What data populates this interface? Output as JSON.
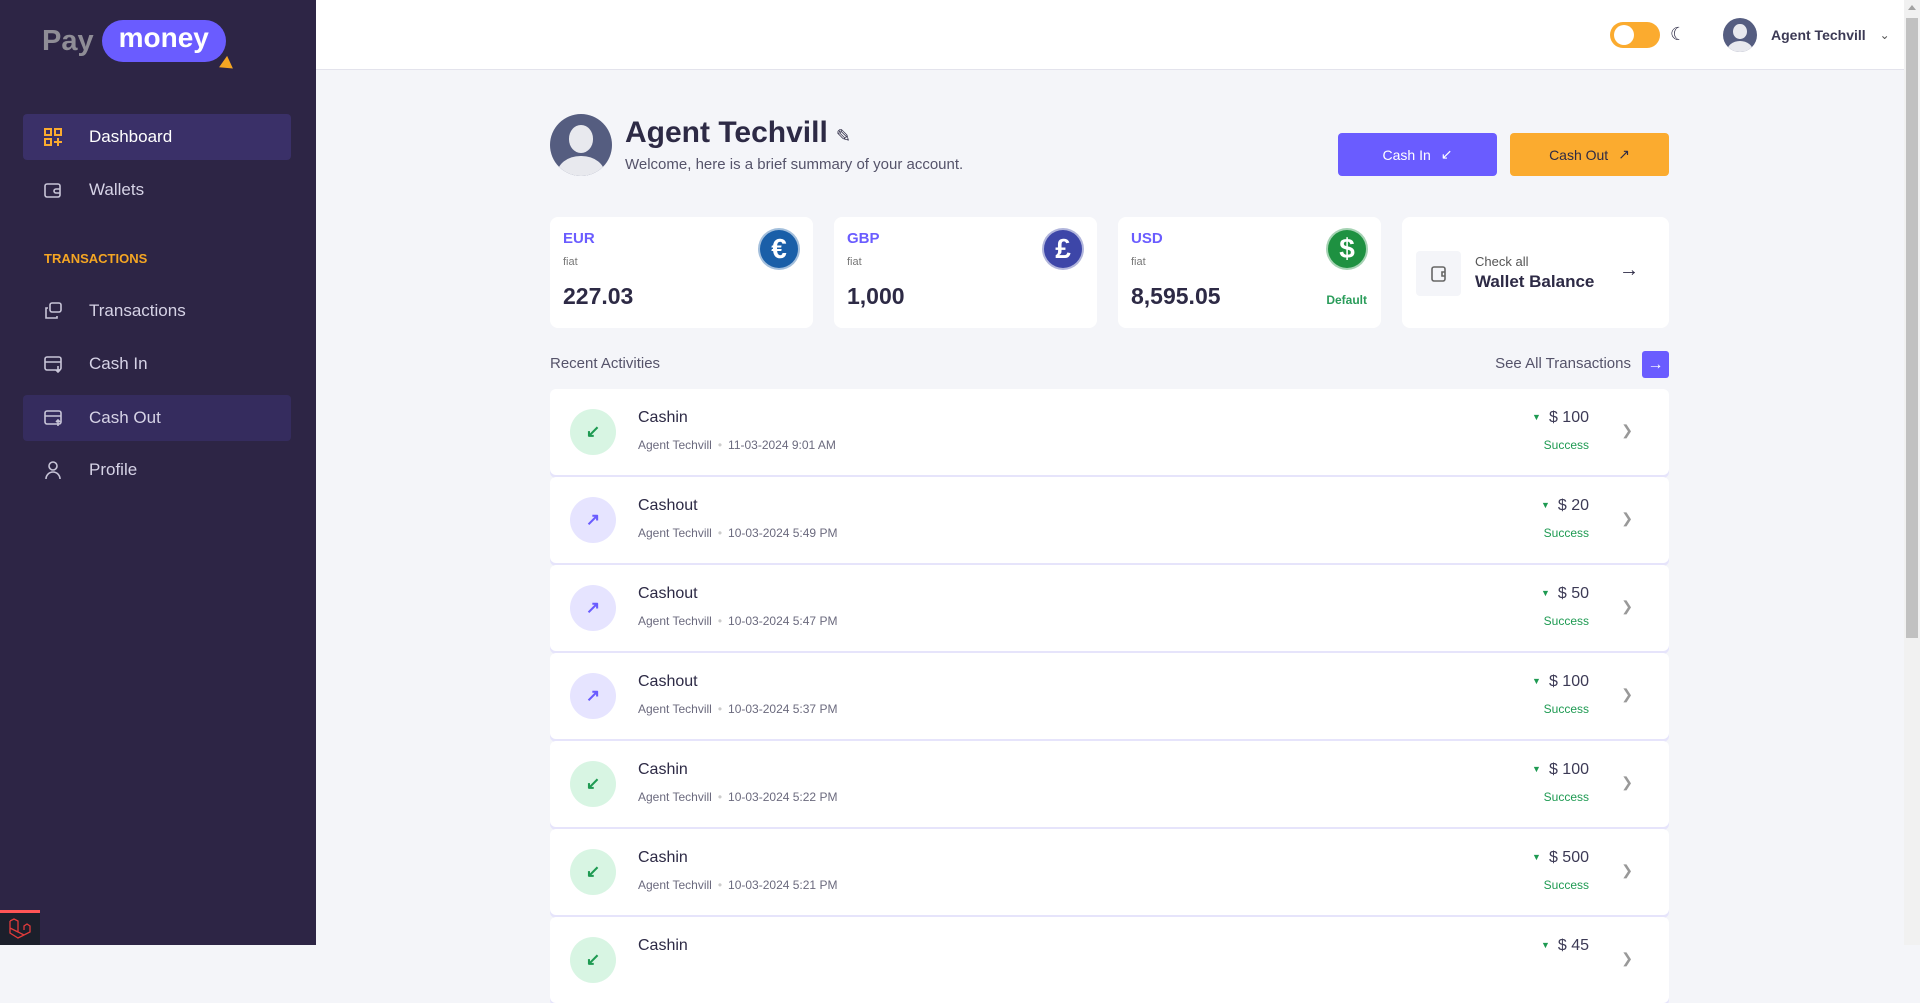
{
  "logo": {
    "pay": "Pay",
    "money": "money"
  },
  "sidebar": {
    "items": [
      {
        "label": "Dashboard",
        "icon": "dashboard-grid-icon",
        "active": true
      },
      {
        "label": "Wallets",
        "icon": "wallet-icon"
      },
      {
        "label": "Transactions",
        "icon": "transactions-icon"
      },
      {
        "label": "Cash In",
        "icon": "cash-in-icon"
      },
      {
        "label": "Cash Out",
        "icon": "cash-out-icon",
        "hover": true
      },
      {
        "label": "Profile",
        "icon": "user-icon"
      }
    ],
    "section": "TRANSACTIONS"
  },
  "topbar": {
    "user_name": "Agent Techvill",
    "theme_toggle": "light",
    "moon": "☾",
    "chevron": "⌄"
  },
  "header": {
    "name": "Agent Techvill",
    "welcome": "Welcome, here is a brief summary of your account.",
    "cash_in": "Cash In",
    "cash_out": "Cash Out",
    "cash_in_arrow": "↙",
    "cash_out_arrow": "↗",
    "edit": "✎"
  },
  "wallets": [
    {
      "currency": "EUR",
      "type": "fiat",
      "amount": "227.03",
      "symbol": "€",
      "color": "#1a5fa8"
    },
    {
      "currency": "GBP",
      "type": "fiat",
      "amount": "1,000",
      "symbol": "£",
      "color": "#3d46a8"
    },
    {
      "currency": "USD",
      "type": "fiat",
      "amount": "8,595.05",
      "symbol": "$",
      "color": "#1e9141",
      "badge": "Default"
    }
  ],
  "wallet_balance": {
    "small": "Check all",
    "big": "Wallet Balance",
    "arrow": "→"
  },
  "recent": {
    "title": "Recent Activities",
    "see_all": "See All Transactions",
    "see_all_arrow": "→"
  },
  "activities": [
    {
      "type": "Cashin",
      "direction": "in",
      "user": "Agent Techvill",
      "date": "11-03-2024 9:01 AM",
      "amount": "$ 100",
      "status": "Success"
    },
    {
      "type": "Cashout",
      "direction": "out",
      "user": "Agent Techvill",
      "date": "10-03-2024 5:49 PM",
      "amount": "$ 20",
      "status": "Success"
    },
    {
      "type": "Cashout",
      "direction": "out",
      "user": "Agent Techvill",
      "date": "10-03-2024 5:47 PM",
      "amount": "$ 50",
      "status": "Success"
    },
    {
      "type": "Cashout",
      "direction": "out",
      "user": "Agent Techvill",
      "date": "10-03-2024 5:37 PM",
      "amount": "$ 100",
      "status": "Success"
    },
    {
      "type": "Cashin",
      "direction": "in",
      "user": "Agent Techvill",
      "date": "10-03-2024 5:22 PM",
      "amount": "$ 100",
      "status": "Success"
    },
    {
      "type": "Cashin",
      "direction": "in",
      "user": "Agent Techvill",
      "date": "10-03-2024 5:21 PM",
      "amount": "$ 500",
      "status": "Success"
    },
    {
      "type": "Cashin",
      "direction": "in",
      "user": "",
      "date": "",
      "amount": "$ 45",
      "status": ""
    }
  ],
  "colors": {
    "sidebar": "#2d2545",
    "accent": "#6a5cff",
    "orange": "#fbab2f",
    "success": "#1e9a52"
  }
}
